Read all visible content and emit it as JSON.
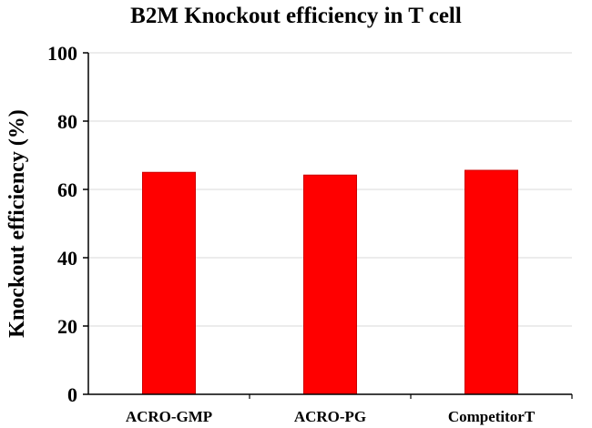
{
  "chart_data": {
    "type": "bar",
    "title": "B2M Knockout efficiency in T cell",
    "xlabel": "",
    "ylabel": "Knockout efficiency (%)",
    "categories": [
      "ACRO-GMP",
      "ACRO-PG",
      "CompetitorT"
    ],
    "values": [
      65,
      64.2,
      65.6
    ],
    "ylim": [
      0,
      100
    ],
    "yticks": [
      0,
      20,
      40,
      60,
      80,
      100
    ],
    "grid": true,
    "legend": "none",
    "bar_color": "#ff0000",
    "bar_edge_color": "#cc0000",
    "grid_color": "#d9d9d9"
  }
}
